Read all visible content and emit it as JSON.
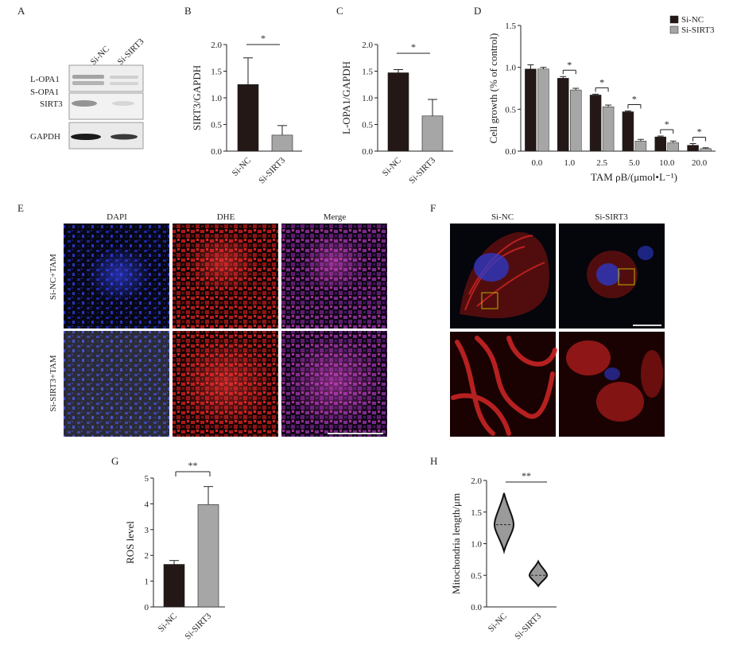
{
  "panel_letters": {
    "a": "A",
    "b": "B",
    "c": "C",
    "d": "D",
    "e": "E",
    "f": "F",
    "g": "G",
    "h": "H"
  },
  "panel_a": {
    "lane_labels": [
      "Si-NC",
      "Si-SIRT3"
    ],
    "band_labels": {
      "lopa1": "L-OPA1",
      "sopa1": "S-OPA1",
      "sirt3": "SIRT3",
      "gapdh": "GAPDH"
    }
  },
  "panel_e": {
    "columns": [
      "DAPI",
      "DHE",
      "Merge"
    ],
    "rows": [
      "Si-NC+TAM",
      "Si-SIRT3+TAM"
    ],
    "colors": {
      "dapi": "#2a3acc",
      "dhe": "#d02020",
      "merge": "#8a2a8a"
    }
  },
  "panel_f": {
    "columns": [
      "Si-NC",
      "Si-SIRT3"
    ],
    "colors": {
      "mito": "#d42626",
      "nucleus": "#2b3bd0"
    }
  },
  "colors": {
    "dark": "#231815",
    "gray": "#a6a6a6"
  },
  "chart_data": [
    {
      "id": "B",
      "type": "bar",
      "categories": [
        "Si-NC",
        "Si-SIRT3"
      ],
      "values": [
        1.25,
        0.3
      ],
      "errors": [
        0.5,
        0.18
      ],
      "ylabel": "SIRT3/GAPDH",
      "ylim": [
        0,
        2.0
      ],
      "yticks": [
        "0.0",
        "0.5",
        "1.0",
        "1.5",
        "2.0"
      ],
      "significance": "*"
    },
    {
      "id": "C",
      "type": "bar",
      "categories": [
        "Si-NC",
        "Si-SIRT3"
      ],
      "values": [
        1.47,
        0.66
      ],
      "errors": [
        0.06,
        0.31
      ],
      "ylabel": "L-OPA1/GAPDH",
      "ylim": [
        0,
        2.0
      ],
      "yticks": [
        "0.0",
        "0.5",
        "1.0",
        "1.5",
        "2.0"
      ],
      "significance": "*"
    },
    {
      "id": "D",
      "type": "bar",
      "categories": [
        "0.0",
        "1.0",
        "2.5",
        "5.0",
        "10.0",
        "20.0"
      ],
      "series": [
        {
          "name": "Si-NC",
          "values": [
            0.98,
            0.87,
            0.67,
            0.47,
            0.17,
            0.07
          ],
          "errors": [
            0.05,
            0.02,
            0.01,
            0.01,
            0.01,
            0.02
          ]
        },
        {
          "name": "Si-SIRT3",
          "values": [
            0.98,
            0.73,
            0.53,
            0.12,
            0.1,
            0.03
          ],
          "errors": [
            0.02,
            0.02,
            0.02,
            0.02,
            0.02,
            0.01
          ]
        }
      ],
      "ylabel": "Cell growth (% of control)",
      "xlabel": "TAM ρB/(μmol•L⁻¹)",
      "ylim": [
        0,
        1.5
      ],
      "yticks": [
        "0.0",
        "0.5",
        "1.0",
        "1.5"
      ],
      "significance": [
        "",
        "*",
        "*",
        "*",
        "*",
        "*"
      ],
      "legend": "top-right"
    },
    {
      "id": "G",
      "type": "bar",
      "categories": [
        "Si-NC",
        "Si-SIRT3"
      ],
      "values": [
        1.65,
        3.97
      ],
      "errors": [
        0.15,
        0.7
      ],
      "ylabel": "ROS level",
      "ylim": [
        0,
        5
      ],
      "yticks": [
        "0",
        "1",
        "2",
        "3",
        "4",
        "5"
      ],
      "significance": "**"
    },
    {
      "id": "H",
      "type": "violin",
      "categories": [
        "Si-NC",
        "Si-SIRT3"
      ],
      "medians": [
        1.3,
        0.5
      ],
      "ranges": [
        [
          0.88,
          1.8
        ],
        [
          0.33,
          0.72
        ]
      ],
      "ylabel": "Mitochondria length/μm",
      "ylim": [
        0,
        2.0
      ],
      "yticks": [
        "0.0",
        "0.5",
        "1.0",
        "1.5",
        "2.0"
      ],
      "significance": "**"
    }
  ]
}
